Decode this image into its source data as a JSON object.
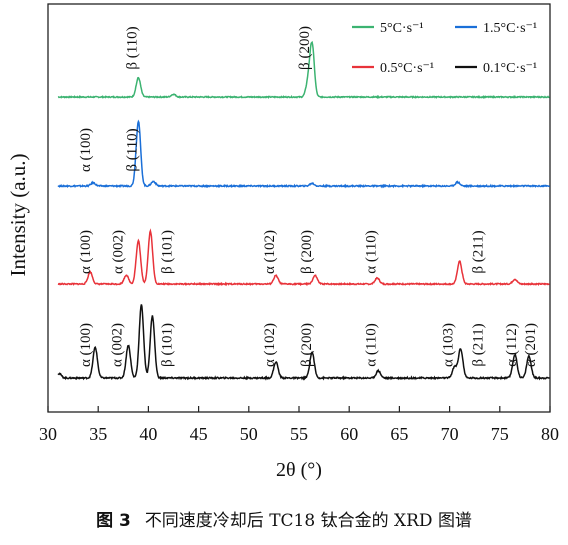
{
  "caption": {
    "label": "图 3",
    "text": "不同速度冷却后 TC18 钛合金的 XRD 图谱"
  },
  "chart_data": {
    "type": "line",
    "title": "",
    "xlabel": "2θ (°)",
    "ylabel": "Intensity (a.u.)",
    "xlim": [
      30,
      80
    ],
    "xticks": [
      30,
      35,
      40,
      45,
      50,
      55,
      60,
      65,
      70,
      75,
      80
    ],
    "y_ticks_labeled": false,
    "grid": false,
    "legend_placement": "top-right",
    "series": [
      {
        "name": "5°C·s⁻¹",
        "color": "#3cb371",
        "baseline": 0.0,
        "peaks": [
          [
            39.0,
            0.35
          ],
          [
            42.5,
            0.05
          ],
          [
            56.3,
            0.95
          ],
          [
            55.9,
            0.25
          ]
        ],
        "labels": [
          {
            "text": "β (110)",
            "x": 38.8
          },
          {
            "text": "β (200)",
            "x": 56.0
          }
        ]
      },
      {
        "name": "1.5°C·s⁻¹",
        "color": "#1a6fd8",
        "baseline": 0.0,
        "peaks": [
          [
            34.5,
            0.05
          ],
          [
            39.0,
            1.0
          ],
          [
            40.5,
            0.07
          ],
          [
            56.3,
            0.04
          ],
          [
            70.8,
            0.06
          ]
        ],
        "labels": [
          {
            "text": "α (100)",
            "x": 34.2
          },
          {
            "text": "β (110)",
            "x": 38.8
          }
        ]
      },
      {
        "name": "0.5°C·s⁻¹",
        "color": "#e8333a",
        "baseline": 0.0,
        "peaks": [
          [
            34.2,
            0.2
          ],
          [
            37.8,
            0.15
          ],
          [
            39.0,
            0.72
          ],
          [
            40.2,
            0.88
          ],
          [
            52.7,
            0.14
          ],
          [
            56.6,
            0.14
          ],
          [
            62.8,
            0.1
          ],
          [
            71.0,
            0.38
          ],
          [
            76.5,
            0.08
          ]
        ],
        "labels": [
          {
            "text": "α (100)",
            "x": 34.2
          },
          {
            "text": "α (002)",
            "x": 37.4
          },
          {
            "text": "β (101)",
            "x": 42.3
          },
          {
            "text": "α (102)",
            "x": 52.5
          },
          {
            "text": "β (200)",
            "x": 56.2
          },
          {
            "text": "α (110)",
            "x": 62.6
          },
          {
            "text": "β (211)",
            "x": 73.3
          }
        ]
      },
      {
        "name": "0.1°C·s⁻¹",
        "color": "#111111",
        "baseline": 0.0,
        "peaks": [
          [
            31.1,
            0.06
          ],
          [
            34.7,
            0.42
          ],
          [
            38.0,
            0.45
          ],
          [
            39.3,
            1.0
          ],
          [
            40.4,
            0.85
          ],
          [
            52.7,
            0.22
          ],
          [
            56.3,
            0.35
          ],
          [
            62.9,
            0.1
          ],
          [
            70.5,
            0.15
          ],
          [
            71.1,
            0.4
          ],
          [
            76.5,
            0.32
          ],
          [
            77.9,
            0.3
          ]
        ],
        "labels": [
          {
            "text": "α (100)",
            "x": 34.2
          },
          {
            "text": "α (002)",
            "x": 37.3
          },
          {
            "text": "β (101)",
            "x": 42.3
          },
          {
            "text": "α (102)",
            "x": 52.5
          },
          {
            "text": "β (200)",
            "x": 56.2
          },
          {
            "text": "α (110)",
            "x": 62.6
          },
          {
            "text": "α (103)",
            "x": 70.3
          },
          {
            "text": "β (211)",
            "x": 73.3
          },
          {
            "text": "α (112)",
            "x": 76.6
          },
          {
            "text": "α (201)",
            "x": 78.5
          }
        ]
      }
    ]
  }
}
